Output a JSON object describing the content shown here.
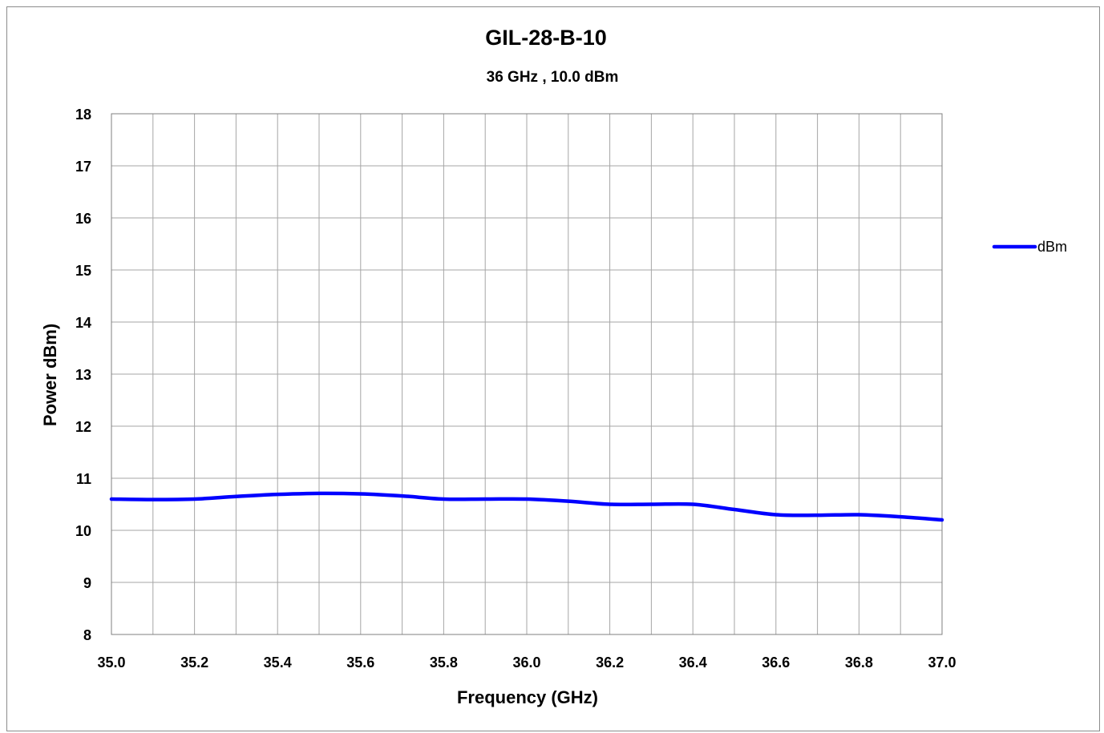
{
  "chart_data": {
    "type": "line",
    "title": "GIL-28-B-10",
    "subtitle": "36 GHz , 10.0 dBm",
    "xlabel": "Frequency  (GHz)",
    "ylabel": "Power dBm)",
    "xlim": [
      35.0,
      37.0
    ],
    "ylim": [
      8,
      18
    ],
    "x_ticks": [
      "35.0",
      "35.2",
      "35.4",
      "35.6",
      "35.8",
      "36.0",
      "36.2",
      "36.4",
      "36.6",
      "36.8",
      "37.0"
    ],
    "x_minor_step": 0.1,
    "y_ticks": [
      "8",
      "9",
      "10",
      "11",
      "12",
      "13",
      "14",
      "15",
      "16",
      "17",
      "18"
    ],
    "grid": true,
    "legend_position": "right",
    "series": [
      {
        "name": "dBm",
        "color": "#0000ff",
        "x": [
          35.0,
          35.1,
          35.2,
          35.3,
          35.4,
          35.5,
          35.6,
          35.7,
          35.8,
          35.9,
          36.0,
          36.1,
          36.2,
          36.3,
          36.4,
          36.5,
          36.6,
          36.7,
          36.8,
          36.9,
          37.0
        ],
        "y": [
          10.6,
          10.59,
          10.6,
          10.65,
          10.69,
          10.71,
          10.7,
          10.66,
          10.6,
          10.6,
          10.6,
          10.56,
          10.5,
          10.5,
          10.5,
          10.4,
          10.3,
          10.29,
          10.3,
          10.26,
          10.2
        ]
      }
    ]
  }
}
